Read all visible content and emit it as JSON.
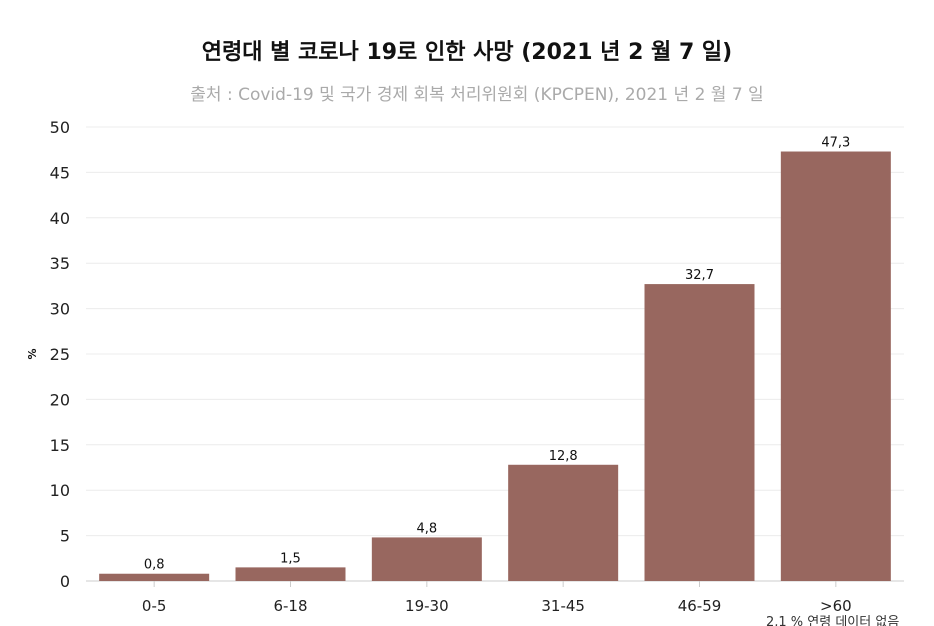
{
  "chart_data": {
    "type": "bar",
    "title": "연령대 별 코로나 19로 인한 사망 (2021 년 2 월 7 일)",
    "subtitle": "출처 : Covid-19 및 국가 경제 회복 처리위원회 (KPCPEN), 2021 년 2 월 7 일",
    "xlabel": "",
    "ylabel": "%",
    "categories": [
      "0-5",
      "6-18",
      "19-30",
      "31-45",
      "46-59",
      ">60"
    ],
    "values": [
      0.8,
      1.5,
      4.8,
      12.8,
      32.7,
      47.3
    ],
    "data_labels": [
      "0,8",
      "1,5",
      "4,8",
      "12,8",
      "32,7",
      "47,3"
    ],
    "ylim": [
      0,
      50
    ],
    "yticks": [
      0,
      5,
      10,
      15,
      20,
      25,
      30,
      35,
      40,
      45,
      50
    ],
    "grid": true,
    "bar_color": "#98675f",
    "footnote": "2,1 % 연령 데이터 없음"
  }
}
